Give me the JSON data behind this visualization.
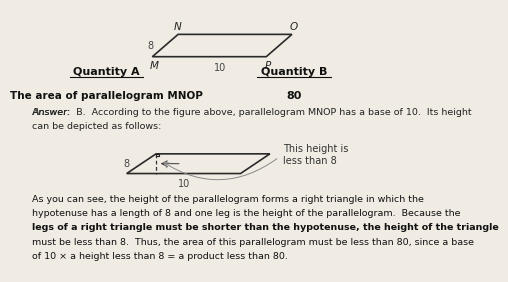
{
  "bg_color": "#f0ece4",
  "qty_a_label": "Quantity A",
  "qty_b_label": "Quantity B",
  "qty_a_value": "The area of parallelogram MNOP",
  "qty_b_value": "80",
  "answer_line1": "Answer:  B.  According to the figure above, parallelogram MNOP has a base of 10.  Its height",
  "answer_line2": "can be depicted as follows:",
  "callout_text": "This height is\nless than 8",
  "body_line1": "As you can see, the height of the parallelogram forms a right triangle in which the",
  "body_line2": "hypotenuse has a length of 8 and one leg is the height of the parallelogram.  Because the",
  "body_line3": "legs of a right triangle must be shorter than the hypotenuse, the height of the triangle",
  "body_line4": "must be less than 8.  Thus, the area of this parallelogram must be less than 80, since a base",
  "body_line5": "of 10 × a height less than 8 = a product less than 80.",
  "bold_snippet": "legs of a right triangle must be shorter than the hypotenuse"
}
